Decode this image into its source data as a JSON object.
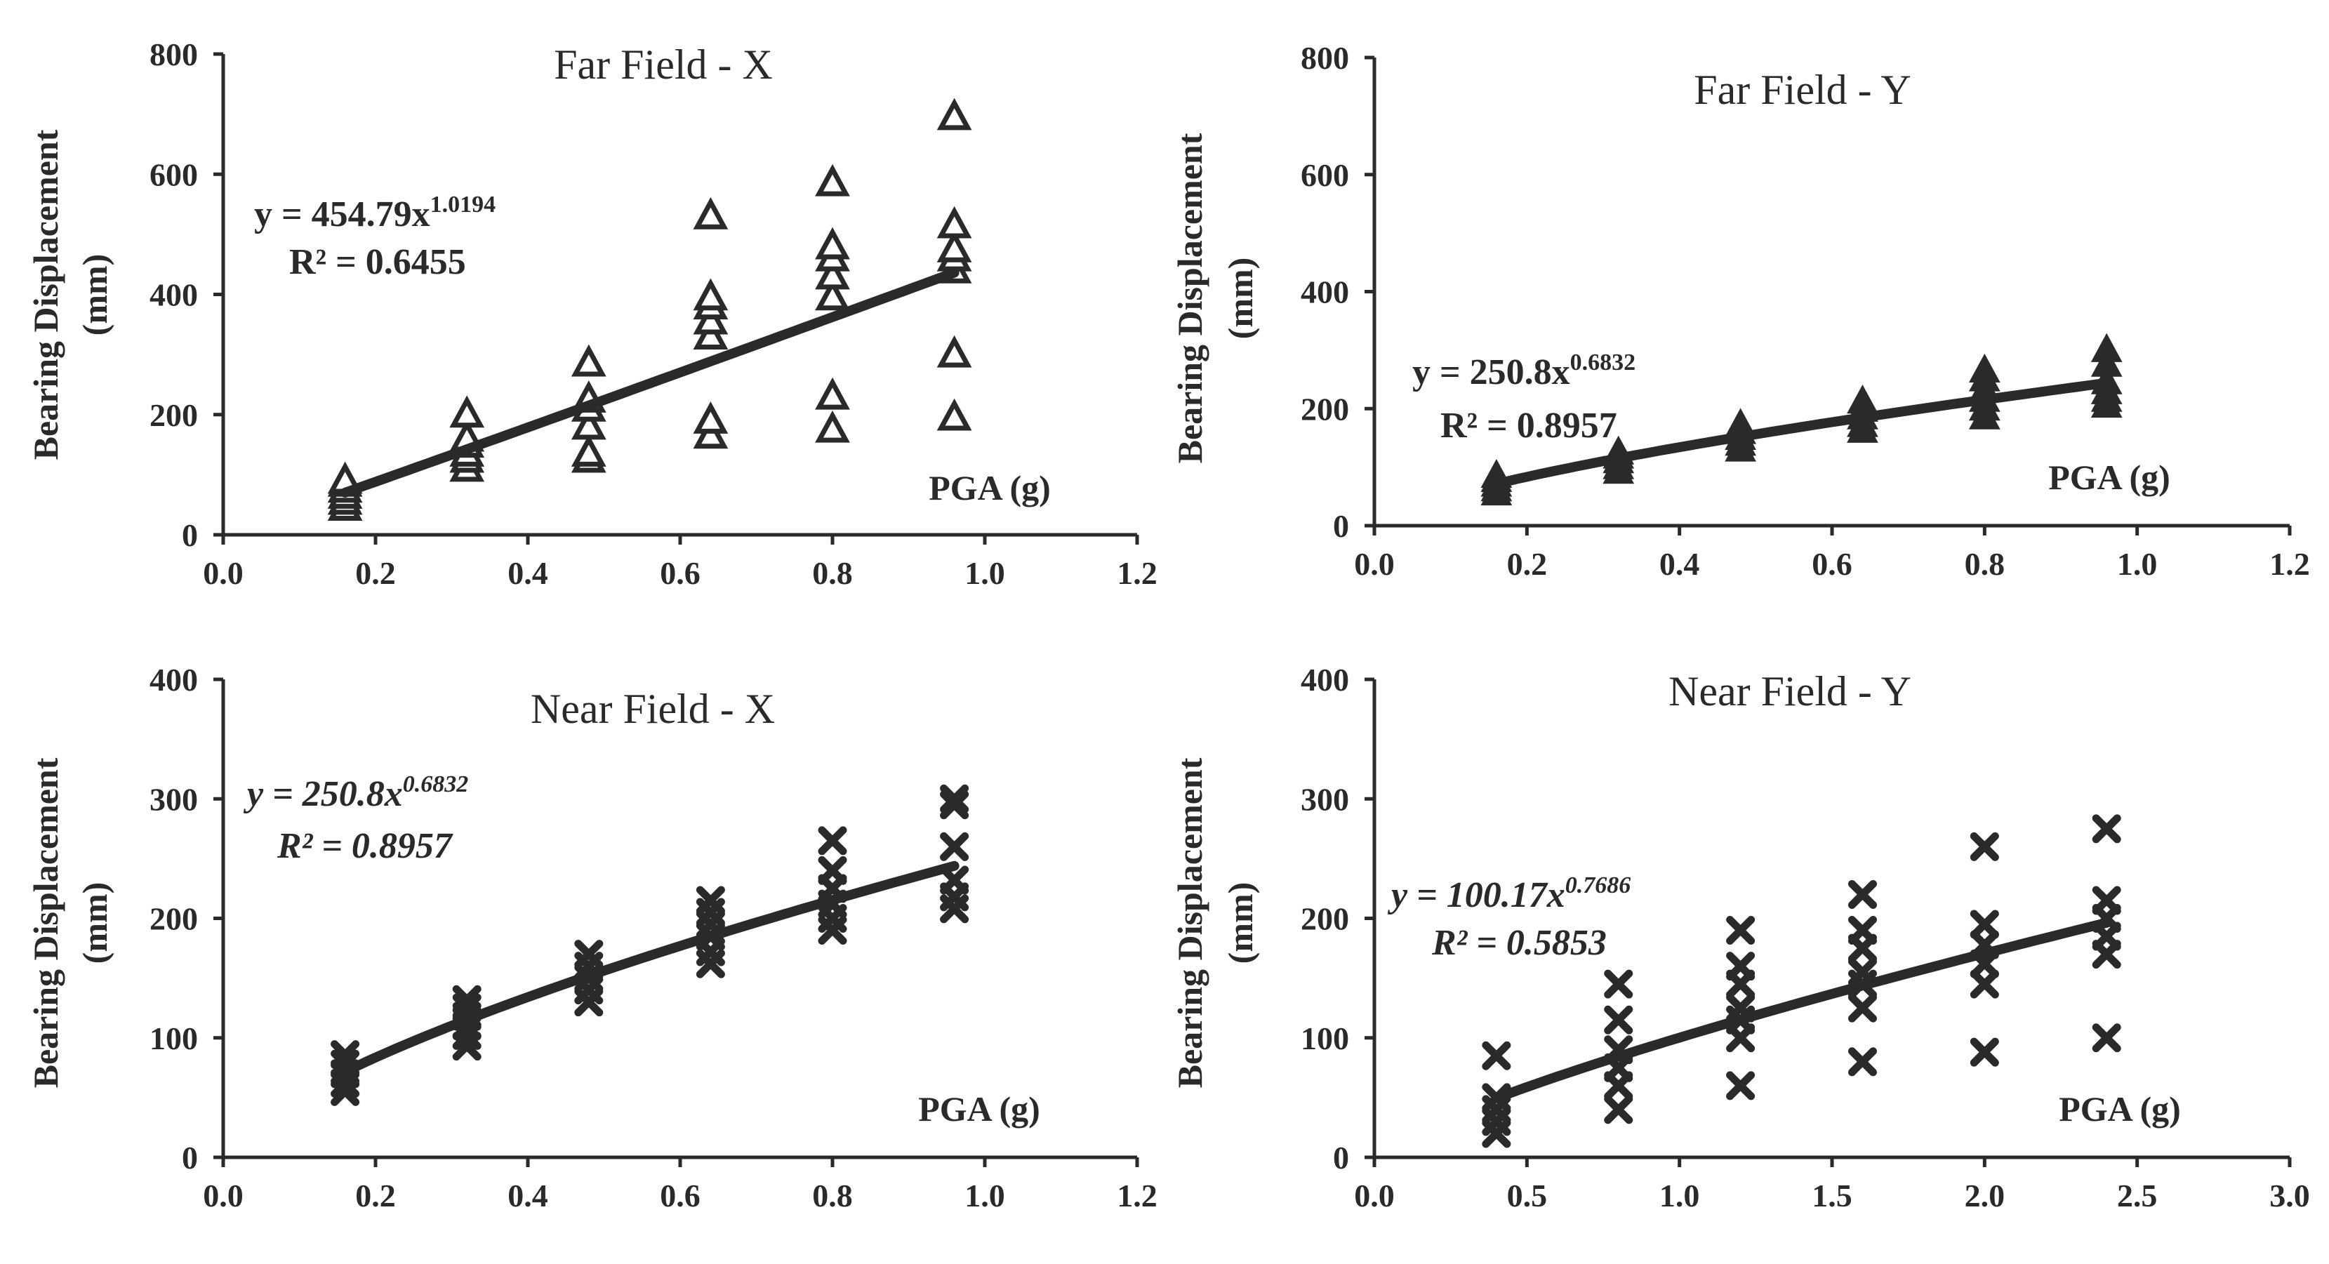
{
  "chart_data": [
    {
      "type": "scatter",
      "title": "Far Field - X",
      "xlabel": "PGA (g)",
      "ylabel_line1": "Bearing Displacement",
      "ylabel_line2": "(mm)",
      "xlim": [
        0,
        1.2
      ],
      "ylim": [
        0,
        800
      ],
      "xticks": [
        "0.0",
        "0.2",
        "0.4",
        "0.6",
        "0.8",
        "1.0",
        "1.2"
      ],
      "yticks": [
        "0",
        "200",
        "400",
        "600",
        "800"
      ],
      "marker": "open-triangle",
      "equation": {
        "prefix": "y = 454.79x",
        "exponent": "1.0194",
        "r2": "R² = 0.6455",
        "italic": false
      },
      "trend": {
        "a": 454.79,
        "b": 1.0194
      },
      "series": [
        {
          "name": "Far Field - X",
          "points": [
            [
              0.16,
              45
            ],
            [
              0.16,
              55
            ],
            [
              0.16,
              65
            ],
            [
              0.16,
              75
            ],
            [
              0.16,
              85
            ],
            [
              0.16,
              90
            ],
            [
              0.32,
              110
            ],
            [
              0.32,
              125
            ],
            [
              0.32,
              135
            ],
            [
              0.32,
              150
            ],
            [
              0.32,
              160
            ],
            [
              0.32,
              200
            ],
            [
              0.48,
              125
            ],
            [
              0.48,
              135
            ],
            [
              0.48,
              180
            ],
            [
              0.48,
              210
            ],
            [
              0.48,
              225
            ],
            [
              0.48,
              285
            ],
            [
              0.64,
              165
            ],
            [
              0.64,
              190
            ],
            [
              0.64,
              330
            ],
            [
              0.64,
              355
            ],
            [
              0.64,
              380
            ],
            [
              0.64,
              395
            ],
            [
              0.64,
              530
            ],
            [
              0.8,
              175
            ],
            [
              0.8,
              230
            ],
            [
              0.8,
              395
            ],
            [
              0.8,
              430
            ],
            [
              0.8,
              460
            ],
            [
              0.8,
              480
            ],
            [
              0.8,
              585
            ],
            [
              0.96,
              195
            ],
            [
              0.96,
              300
            ],
            [
              0.96,
              440
            ],
            [
              0.96,
              460
            ],
            [
              0.96,
              475
            ],
            [
              0.96,
              515
            ],
            [
              0.96,
              695
            ]
          ]
        }
      ]
    },
    {
      "type": "scatter",
      "title": "Far Field - Y",
      "xlabel": "PGA (g)",
      "ylabel_line1": "Bearing Displacement",
      "ylabel_line2": "(mm)",
      "xlim": [
        0,
        1.2
      ],
      "ylim": [
        0,
        800
      ],
      "xticks": [
        "0.0",
        "0.2",
        "0.4",
        "0.6",
        "0.8",
        "1.0",
        "1.2"
      ],
      "yticks": [
        "0",
        "200",
        "400",
        "600",
        "800"
      ],
      "marker": "filled-triangle",
      "equation": {
        "prefix": "y = 250.8x",
        "exponent": "0.6832",
        "r2": "R² = 0.8957",
        "italic": false
      },
      "trend": {
        "a": 250.8,
        "b": 0.6832
      },
      "series": [
        {
          "name": "Far Field - Y",
          "points": [
            [
              0.16,
              55
            ],
            [
              0.16,
              62
            ],
            [
              0.16,
              70
            ],
            [
              0.16,
              78
            ],
            [
              0.16,
              85
            ],
            [
              0.32,
              92
            ],
            [
              0.32,
              100
            ],
            [
              0.32,
              110
            ],
            [
              0.32,
              118
            ],
            [
              0.32,
              125
            ],
            [
              0.48,
              130
            ],
            [
              0.48,
              140
            ],
            [
              0.48,
              150
            ],
            [
              0.48,
              160
            ],
            [
              0.48,
              172
            ],
            [
              0.64,
              162
            ],
            [
              0.64,
              172
            ],
            [
              0.64,
              185
            ],
            [
              0.64,
              198
            ],
            [
              0.64,
              212
            ],
            [
              0.8,
              185
            ],
            [
              0.8,
              200
            ],
            [
              0.8,
              215
            ],
            [
              0.8,
              232
            ],
            [
              0.8,
              250
            ],
            [
              0.8,
              265
            ],
            [
              0.96,
              205
            ],
            [
              0.96,
              215
            ],
            [
              0.96,
              228
            ],
            [
              0.96,
              245
            ],
            [
              0.96,
              275
            ],
            [
              0.96,
              300
            ]
          ]
        }
      ]
    },
    {
      "type": "scatter",
      "title": "Near Field - X",
      "xlabel": "PGA (g)",
      "ylabel_line1": "Bearing Displacement",
      "ylabel_line2": "(mm)",
      "xlim": [
        0,
        1.2
      ],
      "ylim": [
        0,
        400
      ],
      "xticks": [
        "0.0",
        "0.2",
        "0.4",
        "0.6",
        "0.8",
        "1.0",
        "1.2"
      ],
      "yticks": [
        "0",
        "100",
        "200",
        "300",
        "400"
      ],
      "marker": "cross",
      "equation": {
        "prefix": "y = 250.8x",
        "exponent": "0.6832",
        "r2": "R² = 0.8957",
        "italic": true
      },
      "trend": {
        "a": 250.8,
        "b": 0.6832
      },
      "series": [
        {
          "name": "Near Field - X",
          "points": [
            [
              0.16,
              55
            ],
            [
              0.16,
              62
            ],
            [
              0.16,
              70
            ],
            [
              0.16,
              78
            ],
            [
              0.16,
              86
            ],
            [
              0.32,
              93
            ],
            [
              0.32,
              102
            ],
            [
              0.32,
              110
            ],
            [
              0.32,
              118
            ],
            [
              0.32,
              125
            ],
            [
              0.32,
              132
            ],
            [
              0.48,
              130
            ],
            [
              0.48,
              140
            ],
            [
              0.48,
              150
            ],
            [
              0.48,
              160
            ],
            [
              0.48,
              170
            ],
            [
              0.64,
              162
            ],
            [
              0.64,
              172
            ],
            [
              0.64,
              185
            ],
            [
              0.64,
              195
            ],
            [
              0.64,
              205
            ],
            [
              0.64,
              215
            ],
            [
              0.8,
              190
            ],
            [
              0.8,
              200
            ],
            [
              0.8,
              212
            ],
            [
              0.8,
              225
            ],
            [
              0.8,
              240
            ],
            [
              0.8,
              265
            ],
            [
              0.96,
              208
            ],
            [
              0.96,
              218
            ],
            [
              0.96,
              232
            ],
            [
              0.96,
              260
            ],
            [
              0.96,
              295
            ],
            [
              0.96,
              300
            ]
          ]
        }
      ]
    },
    {
      "type": "scatter",
      "title": "Near Field - Y",
      "xlabel": "PGA (g)",
      "ylabel_line1": "Bearing Displacement",
      "ylabel_line2": "(mm)",
      "xlim": [
        0,
        3.0
      ],
      "ylim": [
        0,
        400
      ],
      "xticks": [
        "0.0",
        "0.5",
        "1.0",
        "1.5",
        "2.0",
        "2.5",
        "3.0"
      ],
      "yticks": [
        "0",
        "100",
        "200",
        "300",
        "400"
      ],
      "marker": "cross",
      "equation": {
        "prefix": "y = 100.17x",
        "exponent": "0.7686",
        "r2": "R² = 0.5853",
        "italic": true
      },
      "trend": {
        "a": 100.17,
        "b": 0.7686
      },
      "series": [
        {
          "name": "Near Field - Y",
          "points": [
            [
              0.4,
              20
            ],
            [
              0.4,
              30
            ],
            [
              0.4,
              40
            ],
            [
              0.4,
              50
            ],
            [
              0.4,
              85
            ],
            [
              0.8,
              40
            ],
            [
              0.8,
              60
            ],
            [
              0.8,
              75
            ],
            [
              0.8,
              90
            ],
            [
              0.8,
              115
            ],
            [
              0.8,
              145
            ],
            [
              1.2,
              60
            ],
            [
              1.2,
              100
            ],
            [
              1.2,
              115
            ],
            [
              1.2,
              125
            ],
            [
              1.2,
              145
            ],
            [
              1.2,
              160
            ],
            [
              1.2,
              190
            ],
            [
              1.6,
              80
            ],
            [
              1.6,
              125
            ],
            [
              1.6,
              145
            ],
            [
              1.6,
              155
            ],
            [
              1.6,
              175
            ],
            [
              1.6,
              190
            ],
            [
              1.6,
              220
            ],
            [
              2.0,
              88
            ],
            [
              2.0,
              145
            ],
            [
              2.0,
              162
            ],
            [
              2.0,
              178
            ],
            [
              2.0,
              195
            ],
            [
              2.0,
              260
            ],
            [
              2.4,
              100
            ],
            [
              2.4,
              170
            ],
            [
              2.4,
              185
            ],
            [
              2.4,
              200
            ],
            [
              2.4,
              215
            ],
            [
              2.4,
              275
            ]
          ]
        }
      ]
    }
  ]
}
